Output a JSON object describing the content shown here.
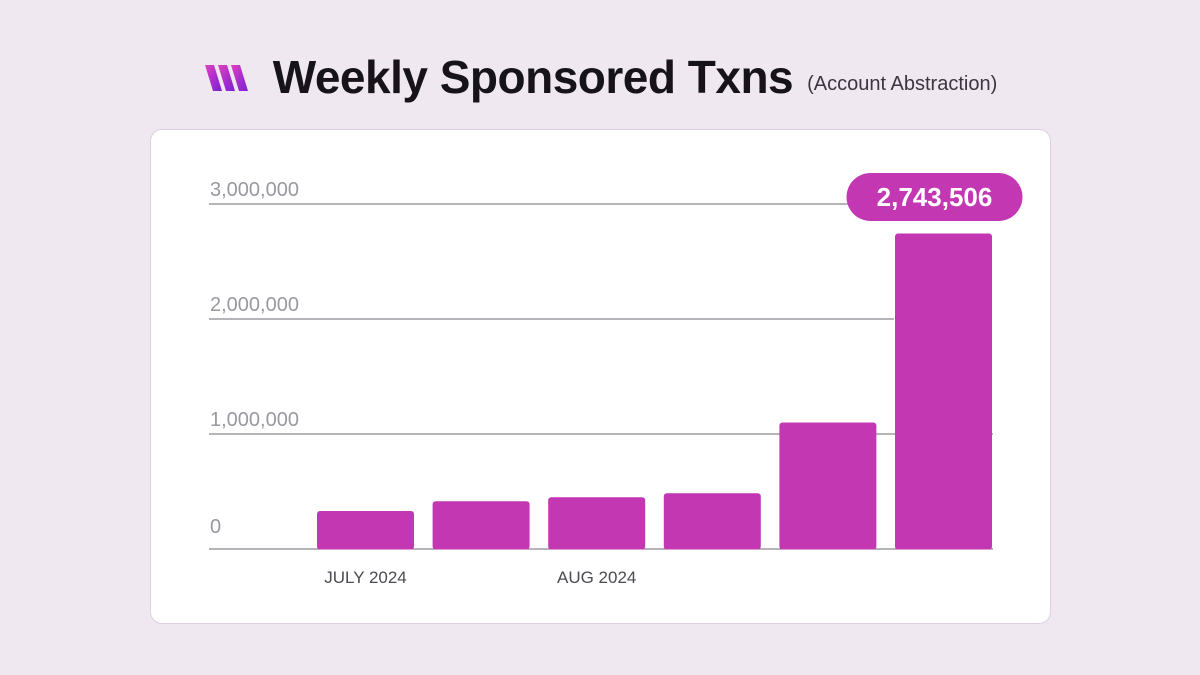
{
  "header": {
    "title": "Weekly Sponsored Txns",
    "subtitle": "(Account Abstraction)",
    "logo_icon": "brand-logo-icon"
  },
  "colors": {
    "background": "#f0e8f0",
    "bar": "#c437b2",
    "callout": "#c437b2",
    "grid": "#6d6a72",
    "logo_gradient": [
      "#e040c0",
      "#7a1fd6"
    ]
  },
  "chart_data": {
    "type": "bar",
    "title": "Weekly Sponsored Txns",
    "subtitle": "(Account Abstraction)",
    "categories": [
      "JULY 2024",
      "",
      "AUG 2024",
      "",
      "",
      ""
    ],
    "values": [
      330000,
      415000,
      450000,
      485000,
      1100000,
      2743506
    ],
    "ylim": [
      0,
      3000000
    ],
    "yticks": [
      {
        "value": 0,
        "label": "0"
      },
      {
        "value": 1000000,
        "label": "1,000,000"
      },
      {
        "value": 2000000,
        "label": "2,000,000"
      },
      {
        "value": 3000000,
        "label": "3,000,000"
      }
    ],
    "xlabel": "",
    "ylabel": "",
    "grid": true,
    "annotation": {
      "bar_index": 5,
      "label": "2,743,506"
    }
  }
}
